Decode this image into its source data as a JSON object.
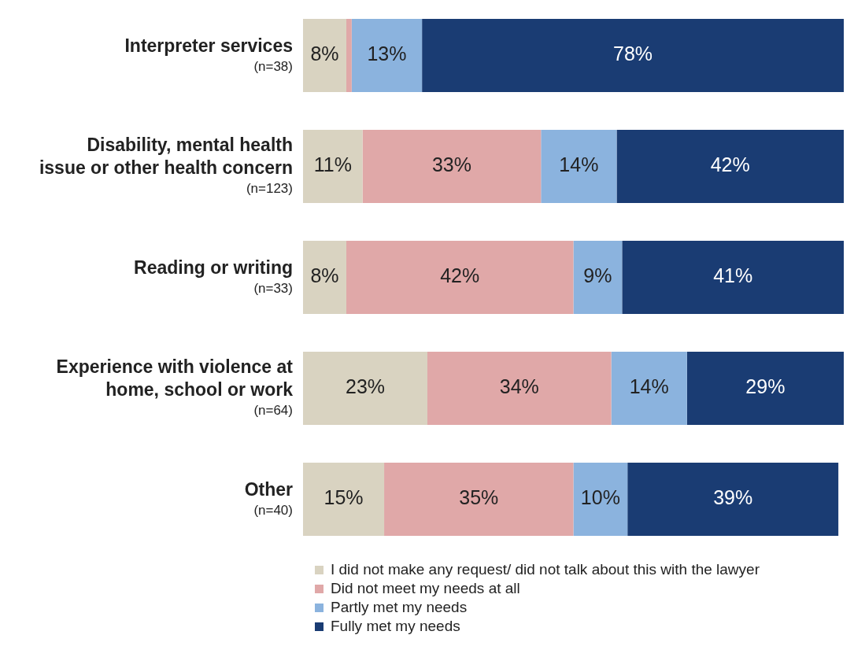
{
  "chart_data": {
    "type": "bar",
    "orientation": "horizontal",
    "stacked": true,
    "categories": [
      "Interpreter services\n(n=38)",
      "Disability, mental health\nissue or other health concern\n(n=123)",
      "Reading or writing\n(n=33)",
      "Experience with violence at\nhome, school or work\n(n=64)",
      "Other\n(n=40)"
    ],
    "series": [
      {
        "name": "I did not make any request/ did not talk about this with the lawyer",
        "color": "#d9d3c1",
        "values": [
          8,
          11,
          8,
          23,
          15
        ],
        "value_labels": [
          "8%",
          "11%",
          "8%",
          "23%",
          "15%"
        ]
      },
      {
        "name": "Did not meet my needs at all",
        "color": "#e0a8a8",
        "values": [
          1,
          33,
          42,
          34,
          35
        ],
        "value_labels": [
          null,
          "33%",
          "42%",
          "34%",
          "35%"
        ]
      },
      {
        "name": "Partly met my needs",
        "color": "#8bb3de",
        "values": [
          13,
          14,
          9,
          14,
          10
        ],
        "value_labels": [
          "13%",
          "14%",
          "9%",
          "14%",
          "10%"
        ]
      },
      {
        "name": "Fully met my needs",
        "color": "#1a3c73",
        "values": [
          78,
          42,
          41,
          29,
          39
        ],
        "value_labels": [
          "78%",
          "42%",
          "41%",
          "29%",
          "39%"
        ]
      }
    ],
    "xlim": [
      0,
      100
    ],
    "tick_labels": "y",
    "legend": "bottom"
  }
}
